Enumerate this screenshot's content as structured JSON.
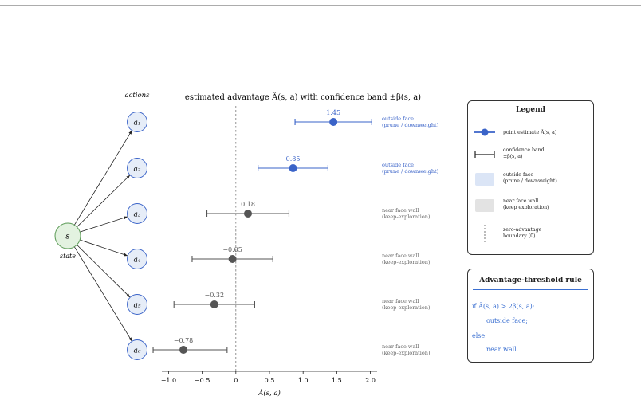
{
  "title": "estimated advantage Â(s, a) with confidence band ±β(s, a)",
  "actions_header": "actions",
  "state": {
    "label": "s",
    "caption": "state"
  },
  "actions": [
    {
      "label": "a₁",
      "estimate": 1.45,
      "lo": 0.88,
      "hi": 2.02,
      "group": "outside",
      "estimate_label": "1.45",
      "side_label": "outside face\n(prune / downweight)"
    },
    {
      "label": "a₂",
      "estimate": 0.85,
      "lo": 0.33,
      "hi": 1.37,
      "group": "outside",
      "estimate_label": "0.85",
      "side_label": "outside face\n(prune / downweight)"
    },
    {
      "label": "a₃",
      "estimate": 0.18,
      "lo": -0.43,
      "hi": 0.79,
      "group": "near",
      "estimate_label": "0.18",
      "side_label": "near face wall\n(keep-exploration)"
    },
    {
      "label": "a₄",
      "estimate": -0.05,
      "lo": -0.65,
      "hi": 0.55,
      "group": "near",
      "estimate_label": "−0.05",
      "side_label": "near face wall\n(keep-exploration)"
    },
    {
      "label": "a₅",
      "estimate": -0.32,
      "lo": -0.92,
      "hi": 0.28,
      "group": "near",
      "estimate_label": "−0.32",
      "side_label": "near face wall\n(keep-exploration)"
    },
    {
      "label": "a₆",
      "estimate": -0.78,
      "lo": -1.23,
      "hi": -0.13,
      "group": "near",
      "estimate_label": "−0.78",
      "side_label": "near face wall\n(keep-exploration)"
    }
  ],
  "axis": {
    "label": "Â(s, a)",
    "min": -1.1,
    "max": 2.1,
    "ticks": [
      -1.0,
      -0.5,
      0.0,
      0.5,
      1.0,
      1.5,
      2.0
    ],
    "tick_labels": [
      "−1.0",
      "−0.5",
      "0",
      "0.5",
      "1.0",
      "1.5",
      "2.0"
    ],
    "zero_line": 0
  },
  "colors": {
    "outside": "#3a63c8",
    "near": "#555555",
    "state_fill": "#e3f2e0",
    "state_stroke": "#5a9a55",
    "action_fill": "#e6edf8",
    "action_stroke": "#3a63c8",
    "legend_outside_patch": "#dbe5f6",
    "legend_near_patch": "#e3e3e3"
  },
  "legend": {
    "title": "Legend",
    "items": [
      {
        "text": "point estimate Â(s, a)",
        "symbol": "point-estimate-icon"
      },
      {
        "text": "confidence band\n±β(s, a)",
        "symbol": "confidence-band-icon"
      },
      {
        "text": "outside face\n(prune / downweight)",
        "symbol": "outside-patch-icon"
      },
      {
        "text": "near face wall\n(keep exploration)",
        "symbol": "near-patch-icon"
      },
      {
        "text": "zero-advantage\nboundary (0)",
        "symbol": "dashed-line-icon"
      }
    ]
  },
  "rule": {
    "title": "Advantage-threshold rule",
    "line1": "if Â(s, a) > 2β(s, a):",
    "line2": "outside face;",
    "line3": "else:",
    "line4": "near wall."
  }
}
